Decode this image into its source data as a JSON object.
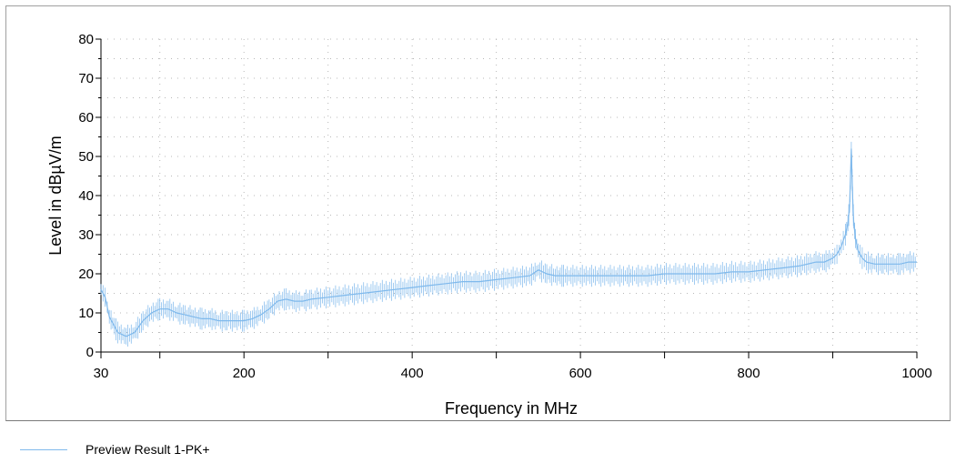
{
  "chart_data": {
    "type": "line",
    "xlabel": "Frequency in MHz",
    "ylabel": "Level in dBµV/m",
    "xlim": [
      30,
      1000
    ],
    "ylim": [
      0,
      80
    ],
    "x_ticks": [
      30,
      200,
      400,
      600,
      800,
      1000
    ],
    "x_minor_ticks": [
      100,
      300,
      500,
      700,
      900
    ],
    "y_ticks": [
      0,
      10,
      20,
      30,
      40,
      50,
      60,
      70,
      80
    ],
    "grid": true,
    "legend_position": "bottom-left",
    "series": [
      {
        "name": "Preview Result 1-PK+",
        "color": "#7fb9ec",
        "x": [
          30,
          35,
          40,
          50,
          60,
          70,
          80,
          90,
          100,
          110,
          120,
          130,
          140,
          150,
          160,
          170,
          180,
          190,
          200,
          210,
          220,
          230,
          240,
          250,
          260,
          270,
          280,
          300,
          320,
          340,
          360,
          380,
          400,
          420,
          440,
          460,
          480,
          500,
          520,
          540,
          550,
          560,
          570,
          580,
          600,
          620,
          640,
          660,
          680,
          700,
          720,
          740,
          760,
          780,
          800,
          820,
          840,
          860,
          880,
          890,
          900,
          905,
          910,
          915,
          918,
          920,
          921,
          922,
          923,
          924,
          925,
          927,
          930,
          935,
          940,
          950,
          960,
          970,
          980,
          990,
          1000
        ],
        "values": [
          16,
          14,
          9,
          5,
          4,
          5,
          8,
          10,
          11,
          11,
          10,
          9.5,
          9,
          8.5,
          8.5,
          8,
          8,
          8,
          8,
          8.5,
          9.5,
          11,
          13,
          13.5,
          13,
          13,
          13.5,
          14,
          14.5,
          15,
          15.5,
          16,
          16.5,
          17,
          17.5,
          18,
          18,
          18.5,
          19,
          19.5,
          21,
          20,
          19.5,
          19.5,
          19.5,
          19.5,
          19.5,
          19.5,
          19.5,
          20,
          20,
          20,
          20,
          20.5,
          20.5,
          21,
          21.5,
          22,
          23,
          23,
          24,
          25,
          27,
          30,
          33,
          37,
          44,
          52,
          44,
          37,
          33,
          29,
          26,
          24,
          23,
          22.5,
          22.5,
          22.5,
          22.5,
          23,
          23
        ]
      }
    ]
  }
}
